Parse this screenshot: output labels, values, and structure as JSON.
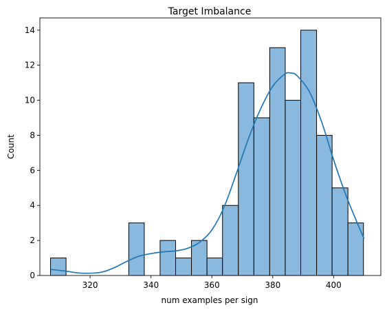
{
  "chart_data": {
    "type": "bar",
    "subtype": "histogram-with-kde",
    "title": "Target Imbalance",
    "xlabel": "num examples per sign",
    "ylabel": "Count",
    "xlim": [
      303.5,
      415.5
    ],
    "ylim": [
      0,
      14.7
    ],
    "x_ticks": [
      320,
      340,
      360,
      380,
      400
    ],
    "y_ticks": [
      0,
      2,
      4,
      6,
      8,
      10,
      12,
      14
    ],
    "grid": false,
    "legend": "none",
    "bins": [
      {
        "x0": 307.0,
        "x1": 312.1,
        "count": 1
      },
      {
        "x0": 312.1,
        "x1": 317.3,
        "count": 0
      },
      {
        "x0": 317.3,
        "x1": 322.4,
        "count": 0
      },
      {
        "x0": 322.4,
        "x1": 327.6,
        "count": 0
      },
      {
        "x0": 327.6,
        "x1": 332.7,
        "count": 0
      },
      {
        "x0": 332.7,
        "x1": 337.8,
        "count": 3
      },
      {
        "x0": 337.8,
        "x1": 343.0,
        "count": 0
      },
      {
        "x0": 343.0,
        "x1": 348.1,
        "count": 2
      },
      {
        "x0": 348.1,
        "x1": 353.3,
        "count": 1
      },
      {
        "x0": 353.3,
        "x1": 358.4,
        "count": 2
      },
      {
        "x0": 358.4,
        "x1": 363.5,
        "count": 1
      },
      {
        "x0": 363.5,
        "x1": 368.7,
        "count": 4
      },
      {
        "x0": 368.7,
        "x1": 373.8,
        "count": 11
      },
      {
        "x0": 373.8,
        "x1": 379.0,
        "count": 9
      },
      {
        "x0": 379.0,
        "x1": 384.1,
        "count": 13
      },
      {
        "x0": 384.1,
        "x1": 389.2,
        "count": 10
      },
      {
        "x0": 389.2,
        "x1": 394.4,
        "count": 14
      },
      {
        "x0": 394.4,
        "x1": 399.5,
        "count": 8
      },
      {
        "x0": 399.5,
        "x1": 404.7,
        "count": 5
      },
      {
        "x0": 404.7,
        "x1": 409.8,
        "count": 3
      }
    ],
    "kde": {
      "x": [
        307,
        312,
        316,
        320,
        324,
        328,
        332,
        336,
        340,
        344,
        348,
        352,
        356,
        360,
        364,
        368,
        372,
        376,
        380,
        384,
        386,
        388,
        392,
        396,
        400,
        404,
        408,
        410
      ],
      "y": [
        0.35,
        0.25,
        0.15,
        0.13,
        0.2,
        0.45,
        0.8,
        1.1,
        1.25,
        1.35,
        1.4,
        1.55,
        1.9,
        2.6,
        3.9,
        5.8,
        7.8,
        9.5,
        10.8,
        11.5,
        11.55,
        11.4,
        10.5,
        8.8,
        6.6,
        4.6,
        2.9,
        2.1
      ]
    },
    "colors": {
      "bar_fill": "#8bb8dd",
      "bar_edge": "#000000",
      "kde_line": "#1f77b4"
    }
  }
}
